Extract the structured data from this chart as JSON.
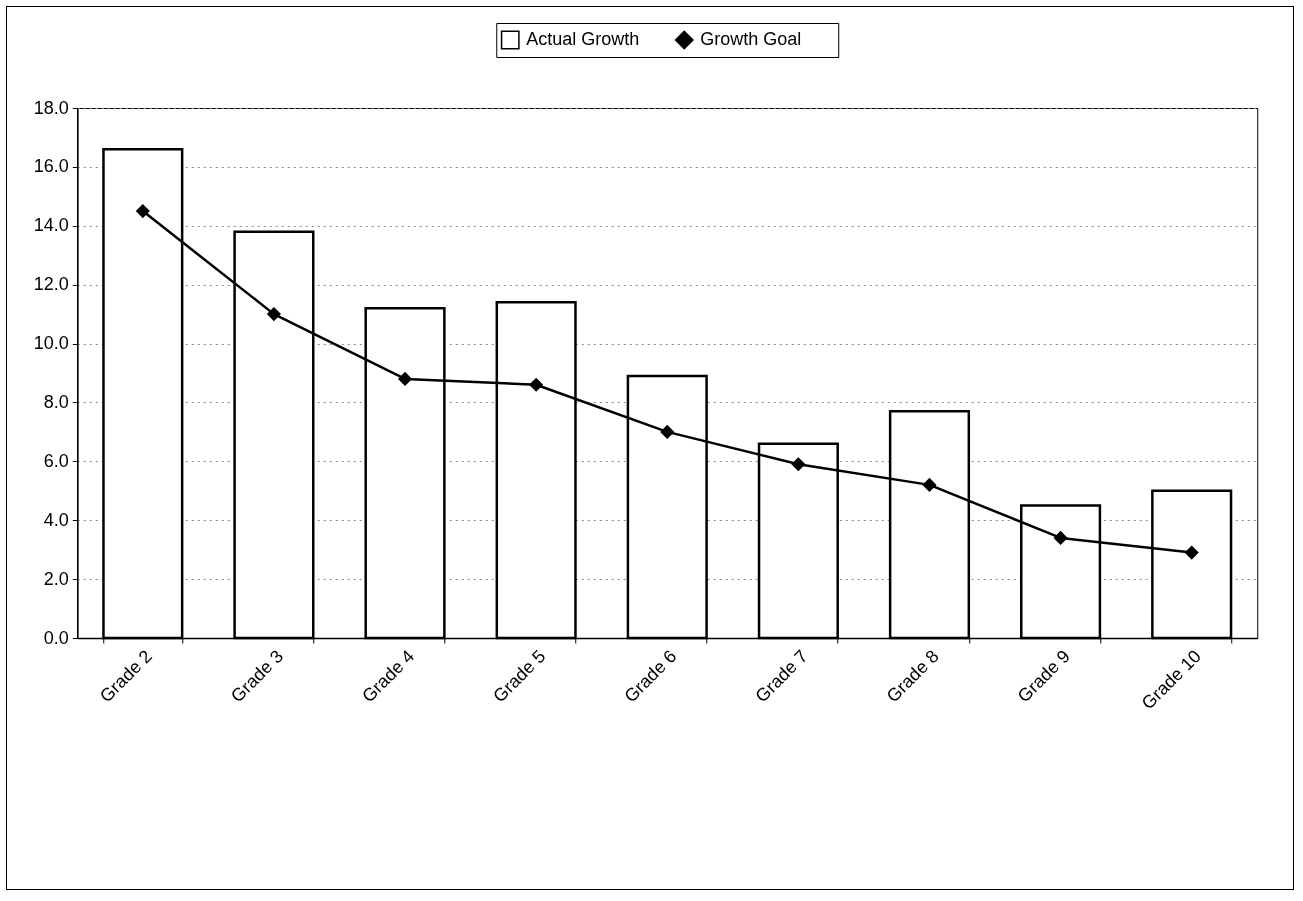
{
  "chart_data": {
    "type": "bar",
    "categories": [
      "Grade 2",
      "Grade 3",
      "Grade 4",
      "Grade 5",
      "Grade 6",
      "Grade 7",
      "Grade 8",
      "Grade 9",
      "Grade 10"
    ],
    "series": [
      {
        "name": "Actual Growth",
        "type": "bar",
        "color": "#ffffff",
        "values": [
          16.6,
          13.8,
          11.2,
          11.4,
          8.9,
          6.6,
          7.7,
          4.5,
          5.0
        ]
      },
      {
        "name": "Growth Goal",
        "type": "line",
        "color": "#000000",
        "marker": "diamond",
        "values": [
          14.5,
          11.0,
          8.8,
          8.6,
          7.0,
          5.9,
          5.2,
          3.4,
          2.9
        ]
      }
    ],
    "ylim": [
      0,
      18
    ],
    "yticks": [
      {
        "value": 0,
        "label": "0.0"
      },
      {
        "value": 2,
        "label": "2.0"
      },
      {
        "value": 4,
        "label": "4.0"
      },
      {
        "value": 6,
        "label": "6.0"
      },
      {
        "value": 8,
        "label": "8.0"
      },
      {
        "value": 10,
        "label": "10.0"
      },
      {
        "value": 12,
        "label": "12.0"
      },
      {
        "value": 14,
        "label": "14.0"
      },
      {
        "value": 16,
        "label": "16.0"
      },
      {
        "value": 18,
        "label": "18.0"
      }
    ],
    "grid": "y",
    "legend": "top"
  }
}
